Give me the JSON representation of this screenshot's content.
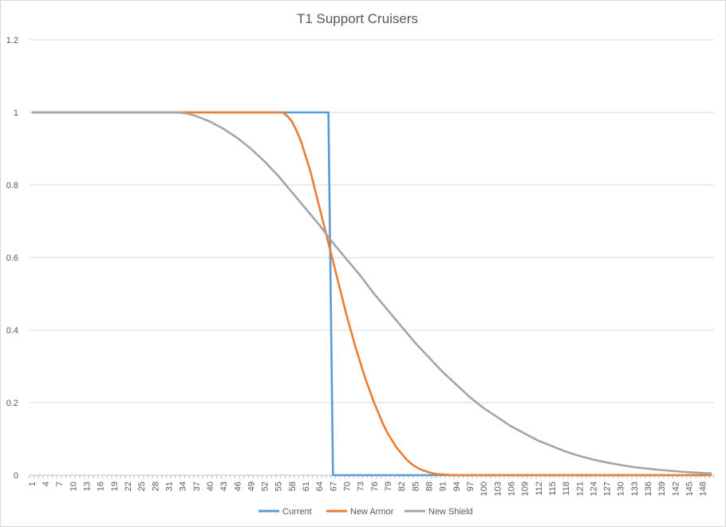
{
  "chart_data": {
    "type": "line",
    "title": "T1 Support Cruisers",
    "xlabel": "",
    "ylabel": "",
    "x_range": [
      1,
      150
    ],
    "x_tick_labels": [
      1,
      4,
      7,
      10,
      13,
      16,
      19,
      22,
      25,
      28,
      31,
      34,
      37,
      40,
      43,
      46,
      49,
      52,
      55,
      58,
      61,
      64,
      67,
      70,
      73,
      76,
      79,
      82,
      85,
      88,
      91,
      94,
      97,
      100,
      103,
      106,
      109,
      112,
      115,
      118,
      121,
      124,
      127,
      130,
      133,
      136,
      139,
      142,
      145,
      148
    ],
    "ylim": [
      0,
      1.2
    ],
    "y_ticks": [
      0,
      0.2,
      0.4,
      0.6,
      0.8,
      1,
      1.2
    ],
    "y_tick_labels": [
      "0",
      "0.2",
      "0.4",
      "0.6",
      "0.8",
      "1",
      "1.2"
    ],
    "grid": "horizontal",
    "legend": "bottom",
    "series": [
      {
        "name": "Current",
        "color": "#5b9bd5",
        "points": [
          [
            1,
            1
          ],
          [
            66,
            1
          ],
          [
            67,
            0
          ],
          [
            150,
            0
          ]
        ]
      },
      {
        "name": "New Armor",
        "color": "#ed7d31",
        "points": [
          [
            1,
            1
          ],
          [
            33,
            1
          ],
          [
            56,
            1
          ],
          [
            57,
            0.99
          ],
          [
            58,
            0.975
          ],
          [
            59,
            0.95
          ],
          [
            60,
            0.92
          ],
          [
            61,
            0.88
          ],
          [
            62,
            0.84
          ],
          [
            63,
            0.79
          ],
          [
            64,
            0.74
          ],
          [
            65,
            0.69
          ],
          [
            66,
            0.64
          ],
          [
            67,
            0.59
          ],
          [
            68,
            0.54
          ],
          [
            69,
            0.49
          ],
          [
            70,
            0.44
          ],
          [
            71,
            0.395
          ],
          [
            72,
            0.35
          ],
          [
            73,
            0.31
          ],
          [
            74,
            0.27
          ],
          [
            75,
            0.235
          ],
          [
            76,
            0.2
          ],
          [
            77,
            0.17
          ],
          [
            78,
            0.14
          ],
          [
            79,
            0.115
          ],
          [
            80,
            0.095
          ],
          [
            81,
            0.075
          ],
          [
            82,
            0.06
          ],
          [
            83,
            0.045
          ],
          [
            84,
            0.033
          ],
          [
            85,
            0.024
          ],
          [
            86,
            0.017
          ],
          [
            87,
            0.012
          ],
          [
            88,
            0.008
          ],
          [
            89,
            0.005
          ],
          [
            90,
            0.003
          ],
          [
            91,
            0.002
          ],
          [
            92,
            0.001
          ],
          [
            93,
            0.0005
          ],
          [
            94,
            0
          ],
          [
            150,
            0
          ]
        ]
      },
      {
        "name": "New Shield",
        "color": "#a5a5a5",
        "points": [
          [
            1,
            1
          ],
          [
            33,
            1
          ],
          [
            35,
            0.997
          ],
          [
            37,
            0.99
          ],
          [
            40,
            0.975
          ],
          [
            43,
            0.955
          ],
          [
            46,
            0.93
          ],
          [
            49,
            0.9
          ],
          [
            52,
            0.865
          ],
          [
            55,
            0.825
          ],
          [
            58,
            0.78
          ],
          [
            61,
            0.735
          ],
          [
            64,
            0.69
          ],
          [
            67,
            0.64
          ],
          [
            70,
            0.595
          ],
          [
            73,
            0.55
          ],
          [
            76,
            0.5
          ],
          [
            79,
            0.455
          ],
          [
            82,
            0.41
          ],
          [
            85,
            0.365
          ],
          [
            88,
            0.325
          ],
          [
            91,
            0.285
          ],
          [
            94,
            0.25
          ],
          [
            97,
            0.215
          ],
          [
            100,
            0.185
          ],
          [
            103,
            0.16
          ],
          [
            106,
            0.135
          ],
          [
            109,
            0.115
          ],
          [
            112,
            0.095
          ],
          [
            115,
            0.08
          ],
          [
            118,
            0.065
          ],
          [
            121,
            0.053
          ],
          [
            124,
            0.043
          ],
          [
            127,
            0.035
          ],
          [
            130,
            0.028
          ],
          [
            133,
            0.022
          ],
          [
            136,
            0.018
          ],
          [
            139,
            0.014
          ],
          [
            142,
            0.011
          ],
          [
            145,
            0.008
          ],
          [
            148,
            0.006
          ],
          [
            150,
            0.005
          ]
        ]
      }
    ]
  }
}
